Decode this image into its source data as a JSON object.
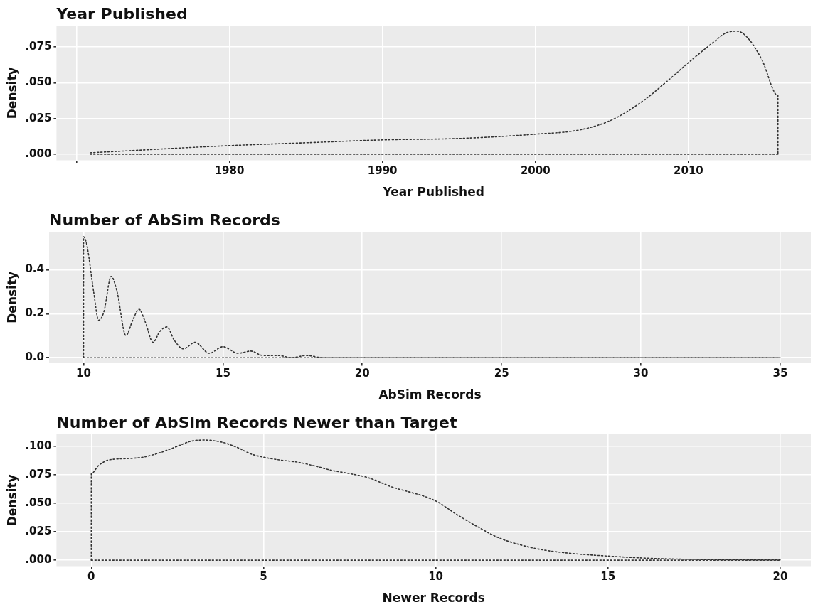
{
  "chart_data": [
    {
      "type": "line",
      "title": "Year Published",
      "xlabel": "Year Published",
      "ylabel": "Density",
      "grid": true,
      "marker": "none",
      "line_style": "dotted",
      "xlim": [
        1968.7,
        2018.0
      ],
      "xticks": [
        {
          "value": 1970,
          "label": null
        },
        1980,
        1990,
        2000,
        2010
      ],
      "ylim": [
        -0.0043,
        0.0899
      ],
      "yticks": [
        {
          "value": 0,
          "label": ".000"
        },
        {
          "value": 0.025,
          "label": ".025"
        },
        {
          "value": 0.05,
          "label": ".050"
        },
        {
          "value": 0.075,
          "label": ".075"
        }
      ],
      "series": [
        {
          "color": "#333333",
          "x": [
            1970.9,
            1980,
            1985,
            1990,
            1995,
            2000,
            2002.9,
            2005,
            2007,
            2008.5,
            2010,
            2011.6,
            2012.5,
            2013.2,
            2013.9,
            2014.8,
            2015.85,
            2015.85
          ],
          "values": [
            0.001,
            0.006,
            0.008,
            0.01,
            0.011,
            0.014,
            0.017,
            0.024,
            0.037,
            0.05,
            0.064,
            0.078,
            0.085,
            0.086,
            0.081,
            0.066,
            0.041,
            0
          ]
        },
        {
          "color": "#333333",
          "x": [
            1970.9,
            2015.85
          ],
          "values": [
            0,
            0
          ]
        }
      ]
    },
    {
      "type": "line",
      "title": "Number of AbSim Records",
      "xlabel": "AbSim Records",
      "ylabel": "Density",
      "grid": true,
      "marker": "none",
      "line_style": "dotted",
      "xlim": [
        8.76,
        36.1
      ],
      "xticks": [
        10,
        15,
        20,
        25,
        30,
        35
      ],
      "ylim": [
        -0.024,
        0.573
      ],
      "yticks": [
        {
          "value": 0,
          "label": "0.0"
        },
        0.2,
        0.4
      ],
      "series": [
        {
          "color": "#333333",
          "x": [
            10,
            10,
            10.12,
            10.36,
            10.54,
            10.73,
            10.99,
            11.2,
            11.52,
            11.76,
            11.99,
            12.22,
            12.49,
            12.74,
            12.99,
            13.25,
            13.58,
            14.0,
            14.51,
            15.0,
            15.54,
            16.0,
            16.43,
            16.99,
            17.46,
            18.0,
            18.6,
            20.0,
            22.0,
            35
          ],
          "values": [
            0,
            0.55,
            0.51,
            0.3,
            0.17,
            0.21,
            0.37,
            0.3,
            0.1,
            0.17,
            0.22,
            0.16,
            0.07,
            0.12,
            0.14,
            0.08,
            0.04,
            0.07,
            0.02,
            0.05,
            0.02,
            0.03,
            0.01,
            0.01,
            0,
            0.01,
            0,
            0,
            0,
            0
          ]
        },
        {
          "color": "#333333",
          "x": [
            10,
            35
          ],
          "values": [
            0,
            0
          ]
        }
      ]
    },
    {
      "type": "line",
      "title": "Number of AbSim Records Newer than Target",
      "xlabel": "Newer Records",
      "ylabel": "Density",
      "grid": true,
      "marker": "none",
      "line_style": "dotted",
      "xlim": [
        -1.01,
        20.89
      ],
      "xticks": [
        0,
        5,
        10,
        15,
        20
      ],
      "ylim": [
        -0.0053,
        0.1105
      ],
      "yticks": [
        {
          "value": 0,
          "label": ".000"
        },
        {
          "value": 0.025,
          "label": ".025"
        },
        {
          "value": 0.05,
          "label": ".050"
        },
        {
          "value": 0.075,
          "label": ".075"
        },
        {
          "value": 0.1,
          "label": ".100"
        }
      ],
      "series": [
        {
          "color": "#333333",
          "x": [
            0,
            0,
            0.21,
            0.52,
            1.05,
            1.5,
            1.96,
            2.5,
            2.88,
            3.26,
            3.79,
            4.25,
            4.63,
            5.0,
            5.46,
            6.0,
            6.53,
            6.99,
            7.52,
            8.05,
            8.66,
            10,
            10.59,
            11.2,
            11.81,
            12.5,
            13.12,
            13.88,
            15.0,
            16.18,
            17.48,
            20
          ],
          "values": [
            0,
            0.0759,
            0.0831,
            0.088,
            0.0892,
            0.0904,
            0.094,
            0.1,
            0.1043,
            0.1055,
            0.1036,
            0.0988,
            0.0933,
            0.0904,
            0.088,
            0.086,
            0.0824,
            0.0788,
            0.0759,
            0.0723,
            0.065,
            0.052,
            0.0405,
            0.0296,
            0.0199,
            0.0131,
            0.009,
            0.0061,
            0.0036,
            0.0017,
            0.0007,
            0.0002
          ]
        }
      ],
      "ref_lines": [
        {
          "axis": "y",
          "value": 0,
          "color": "#333333",
          "line_style": "dotted"
        }
      ]
    }
  ]
}
